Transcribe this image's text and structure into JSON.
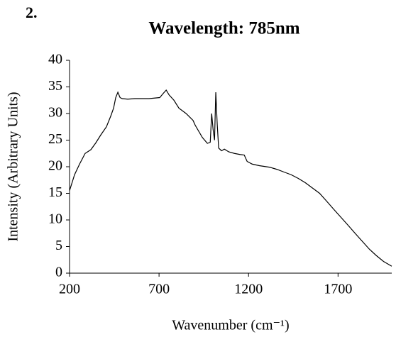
{
  "chart_data": {
    "type": "line",
    "panel_label": "2.",
    "title": "Wavelength: 785nm",
    "x_label": "Wavenumber (cm⁻¹)",
    "y_label": "Intensity (Arbitrary Units)",
    "xlim": [
      200,
      2000
    ],
    "xticks": [
      200,
      700,
      1200,
      1700
    ],
    "ylim": [
      0,
      40
    ],
    "yticks": [
      0,
      5,
      10,
      15,
      20,
      25,
      30,
      35,
      40
    ],
    "grid": false,
    "x": [
      200,
      228,
      256,
      287,
      319,
      347,
      375,
      406,
      430,
      446,
      458,
      470,
      482,
      494,
      525,
      565,
      605,
      644,
      704,
      724,
      740,
      756,
      783,
      811,
      851,
      890,
      902,
      942,
      970,
      986,
      994,
      1002,
      1010,
      1017,
      1025,
      1033,
      1049,
      1065,
      1089,
      1121,
      1152,
      1176,
      1192,
      1220,
      1260,
      1319,
      1359,
      1398,
      1438,
      1478,
      1517,
      1557,
      1597,
      1637,
      1676,
      1716,
      1756,
      1795,
      1835,
      1875,
      1914,
      1954,
      2000
    ],
    "series": [
      {
        "color": "#000000",
        "values": [
          15.5,
          18.5,
          20.5,
          22.5,
          23.2,
          24.5,
          26,
          27.5,
          29.5,
          31,
          33,
          34,
          33,
          32.8,
          32.7,
          32.8,
          32.8,
          32.8,
          33,
          33.8,
          34.4,
          33.5,
          32.5,
          31,
          30,
          28.7,
          27.8,
          25.5,
          24.4,
          24.6,
          30,
          27,
          25,
          34,
          28,
          23.5,
          23,
          23.3,
          22.8,
          22.5,
          22.3,
          22.2,
          21,
          20.5,
          20.2,
          19.9,
          19.5,
          19,
          18.5,
          17.8,
          17,
          16,
          15,
          13.5,
          12,
          10.5,
          9,
          7.5,
          6,
          4.5,
          3.3,
          2.2,
          1.3
        ]
      }
    ]
  }
}
